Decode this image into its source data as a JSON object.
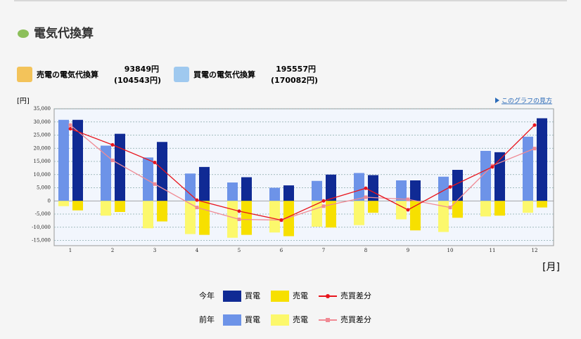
{
  "header": {
    "title": "電気代換算",
    "sell_label": "売電の電気代換算",
    "sell_value": "93849円",
    "sell_prev": "(104543円)",
    "buy_label": "買電の電気代換算",
    "buy_value": "195557円",
    "buy_prev": "(170082円)",
    "help_link": "このグラフの見方"
  },
  "chart_data": {
    "type": "bar",
    "y_label": "[円]",
    "x_label": "[月]",
    "categories": [
      "1",
      "2",
      "3",
      "4",
      "5",
      "6",
      "7",
      "8",
      "9",
      "10",
      "11",
      "12"
    ],
    "ylim": [
      -17000,
      35000
    ],
    "yticks": [
      {
        "value": 35000,
        "label": "35,000"
      },
      {
        "value": 30000,
        "label": "30,000"
      },
      {
        "value": 25000,
        "label": "25,000"
      },
      {
        "value": 20000,
        "label": "20,000"
      },
      {
        "value": 15000,
        "label": "15,000"
      },
      {
        "value": 10000,
        "label": "10,000"
      },
      {
        "value": 5000,
        "label": "5,000"
      },
      0,
      {
        "value": -5000,
        "label": "-5,000"
      },
      {
        "value": -10000,
        "label": "-10,000"
      },
      {
        "value": -15000,
        "label": "-15,000"
      }
    ],
    "grid": true,
    "groups": [
      {
        "name": "今年",
        "series": [
          {
            "name": "買電",
            "type": "bar",
            "color": "#102a94",
            "values": [
              30800,
              25500,
              22400,
              12900,
              9000,
              5900,
              10000,
              9800,
              7800,
              11800,
              18500,
              31400
            ]
          },
          {
            "name": "売電",
            "type": "bar",
            "color": "#f7e000",
            "values": [
              -3600,
              -4200,
              -7800,
              -12900,
              -12900,
              -13400,
              -10100,
              -4500,
              -11200,
              -6400,
              -5600,
              -2500
            ]
          },
          {
            "name": "売買差分",
            "type": "line",
            "color": "#e8141c",
            "values": [
              27400,
              21300,
              14600,
              300,
              -3900,
              -7300,
              0,
              4800,
              -3400,
              5300,
              12900,
              28800
            ]
          }
        ]
      },
      {
        "name": "前年",
        "series": [
          {
            "name": "買電",
            "type": "bar",
            "color": "#6d93e8",
            "values": [
              30800,
              21000,
              16500,
              10400,
              7000,
              5000,
              7600,
              10600,
              7800,
              9200,
              19000,
              24400
            ]
          },
          {
            "name": "売電",
            "type": "bar",
            "color": "#fcf86c",
            "values": [
              -2000,
              -5600,
              -10400,
              -12600,
              -14000,
              -12000,
              -9800,
              -9200,
              -7000,
              -11800,
              -5900,
              -4500
            ]
          },
          {
            "name": "売買差分",
            "type": "line",
            "color": "#f08a94",
            "values": [
              28800,
              15400,
              6400,
              -2500,
              -7000,
              -7300,
              -2000,
              1400,
              600,
              -2500,
              13400,
              19900
            ]
          }
        ]
      }
    ]
  }
}
